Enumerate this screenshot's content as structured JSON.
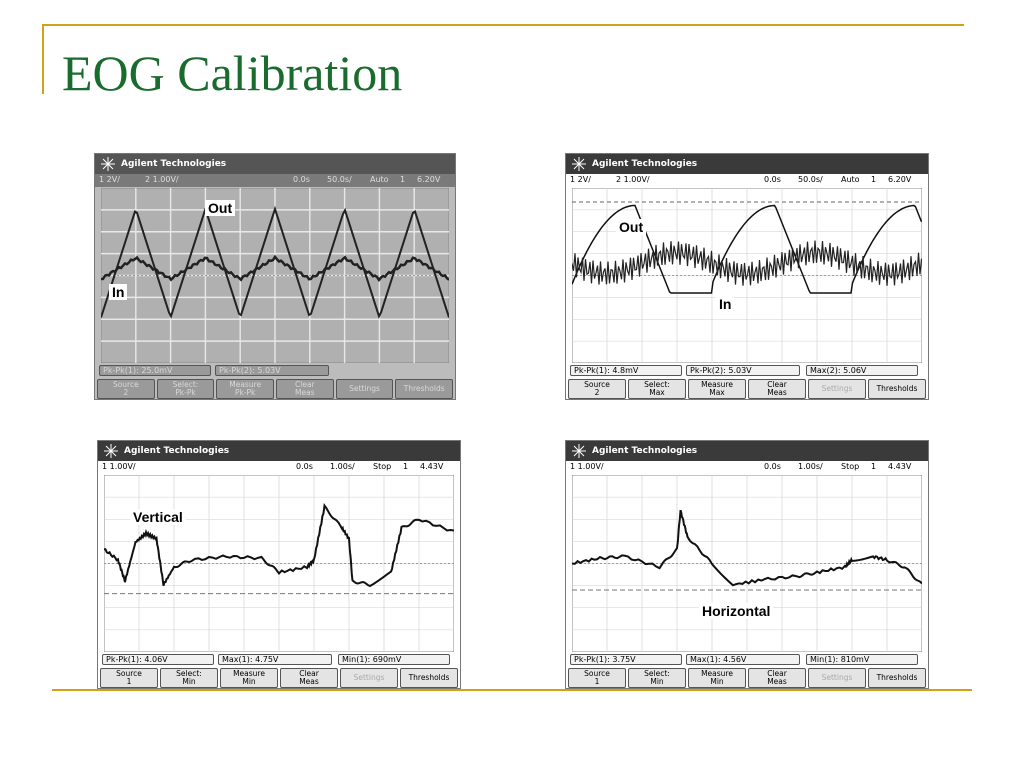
{
  "slide": {
    "title": "EOG Calibration"
  },
  "scopes": [
    {
      "header": "Agilent Technologies",
      "status": {
        "ch1": "1 2V/",
        "ch2": "2 1.00V/",
        "trig": "0.0s",
        "time": "50.0s/",
        "mode": "Auto",
        "trigch": "1",
        "trigval": "6.20V"
      },
      "label_out": "Out",
      "label_in": "In",
      "meas": [
        "Pk-Pk(1): 25.0mV",
        "Pk-Pk(2): 5.03V",
        ""
      ],
      "softkeys": [
        [
          "Source",
          "2"
        ],
        [
          "Select:",
          "Pk-Pk"
        ],
        [
          "Measure",
          "Pk-Pk"
        ],
        [
          "Clear",
          "Meas"
        ],
        [
          "Settings",
          ""
        ],
        [
          "Thresholds",
          ""
        ]
      ]
    },
    {
      "header": "Agilent Technologies",
      "status": {
        "ch1": "1 2V/",
        "ch2": "2 1.00V/",
        "trig": "0.0s",
        "time": "50.0s/",
        "mode": "Auto",
        "trigch": "1",
        "trigval": "6.20V"
      },
      "label_out": "Out",
      "label_in": "In",
      "meas": [
        "Pk-Pk(1): 4.8mV",
        "Pk-Pk(2): 5.03V",
        "Max(2): 5.06V"
      ],
      "softkeys": [
        [
          "Source",
          "2"
        ],
        [
          "Select:",
          "Max"
        ],
        [
          "Measure",
          "Max"
        ],
        [
          "Clear",
          "Meas"
        ],
        [
          "Settings",
          ""
        ],
        [
          "Thresholds",
          ""
        ]
      ]
    },
    {
      "header": "Agilent Technologies",
      "status": {
        "ch1": "1 1.00V/",
        "ch2": "",
        "trig": "0.0s",
        "time": "1.00s/",
        "mode": "Stop",
        "trigch": "1",
        "trigval": "4.43V"
      },
      "label": "Vertical",
      "meas": [
        "Pk-Pk(1): 4.06V",
        "Max(1): 4.75V",
        "Min(1): 690mV"
      ],
      "softkeys": [
        [
          "Source",
          "1"
        ],
        [
          "Select:",
          "Min"
        ],
        [
          "Measure",
          "Min"
        ],
        [
          "Clear",
          "Meas"
        ],
        [
          "Settings",
          ""
        ],
        [
          "Thresholds",
          ""
        ]
      ]
    },
    {
      "header": "Agilent Technologies",
      "status": {
        "ch1": "1 1.00V/",
        "ch2": "",
        "trig": "0.0s",
        "time": "1.00s/",
        "mode": "Stop",
        "trigch": "1",
        "trigval": "4.43V"
      },
      "label": "Horizontal",
      "meas": [
        "Pk-Pk(1): 3.75V",
        "Max(1): 4.56V",
        "Min(1): 810mV"
      ],
      "softkeys": [
        [
          "Source",
          "1"
        ],
        [
          "Select:",
          "Min"
        ],
        [
          "Measure",
          "Min"
        ],
        [
          "Clear",
          "Meas"
        ],
        [
          "Settings",
          ""
        ],
        [
          "Thresholds",
          ""
        ]
      ]
    }
  ]
}
